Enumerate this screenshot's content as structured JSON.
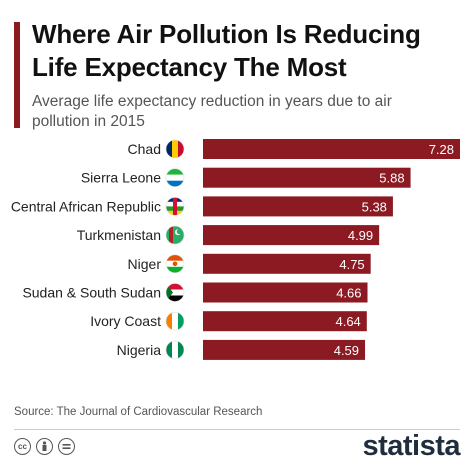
{
  "header": {
    "title": "Where Air Pollution Is Reducing Life Expectancy The Most",
    "subtitle": "Average life expectancy reduction in years due to air pollution in 2015"
  },
  "footer": {
    "source": "Source: The Journal of Cardiovascular Research",
    "brand": "statista",
    "license_icons": [
      "cc-icon",
      "attribution-icon",
      "no-derivatives-icon"
    ]
  },
  "colors": {
    "bar": "#8b1a22",
    "title_accent": "#8b1a22",
    "label_text": "#222222"
  },
  "chart_data": {
    "type": "bar",
    "orientation": "horizontal",
    "title": "Where Air Pollution Is Reducing Life Expectancy The Most",
    "subtitle": "Average life expectancy reduction in years due to air pollution in 2015",
    "categories": [
      "Chad",
      "Sierra Leone",
      "Central African Republic",
      "Turkmenistan",
      "Niger",
      "Sudan & South Sudan",
      "Ivory Coast",
      "Nigeria"
    ],
    "values": [
      7.28,
      5.88,
      5.38,
      4.99,
      4.75,
      4.66,
      4.64,
      4.59
    ],
    "value_labels": [
      "7.28",
      "5.88",
      "5.38",
      "4.99",
      "4.75",
      "4.66",
      "4.64",
      "4.59"
    ],
    "flags": [
      "chad-flag-icon",
      "sierra-leone-flag-icon",
      "central-african-republic-flag-icon",
      "turkmenistan-flag-icon",
      "niger-flag-icon",
      "sudan-south-sudan-flag-icon",
      "ivory-coast-flag-icon",
      "nigeria-flag-icon"
    ],
    "xlim": [
      0,
      7.28
    ],
    "grid": false,
    "legend": "none"
  }
}
